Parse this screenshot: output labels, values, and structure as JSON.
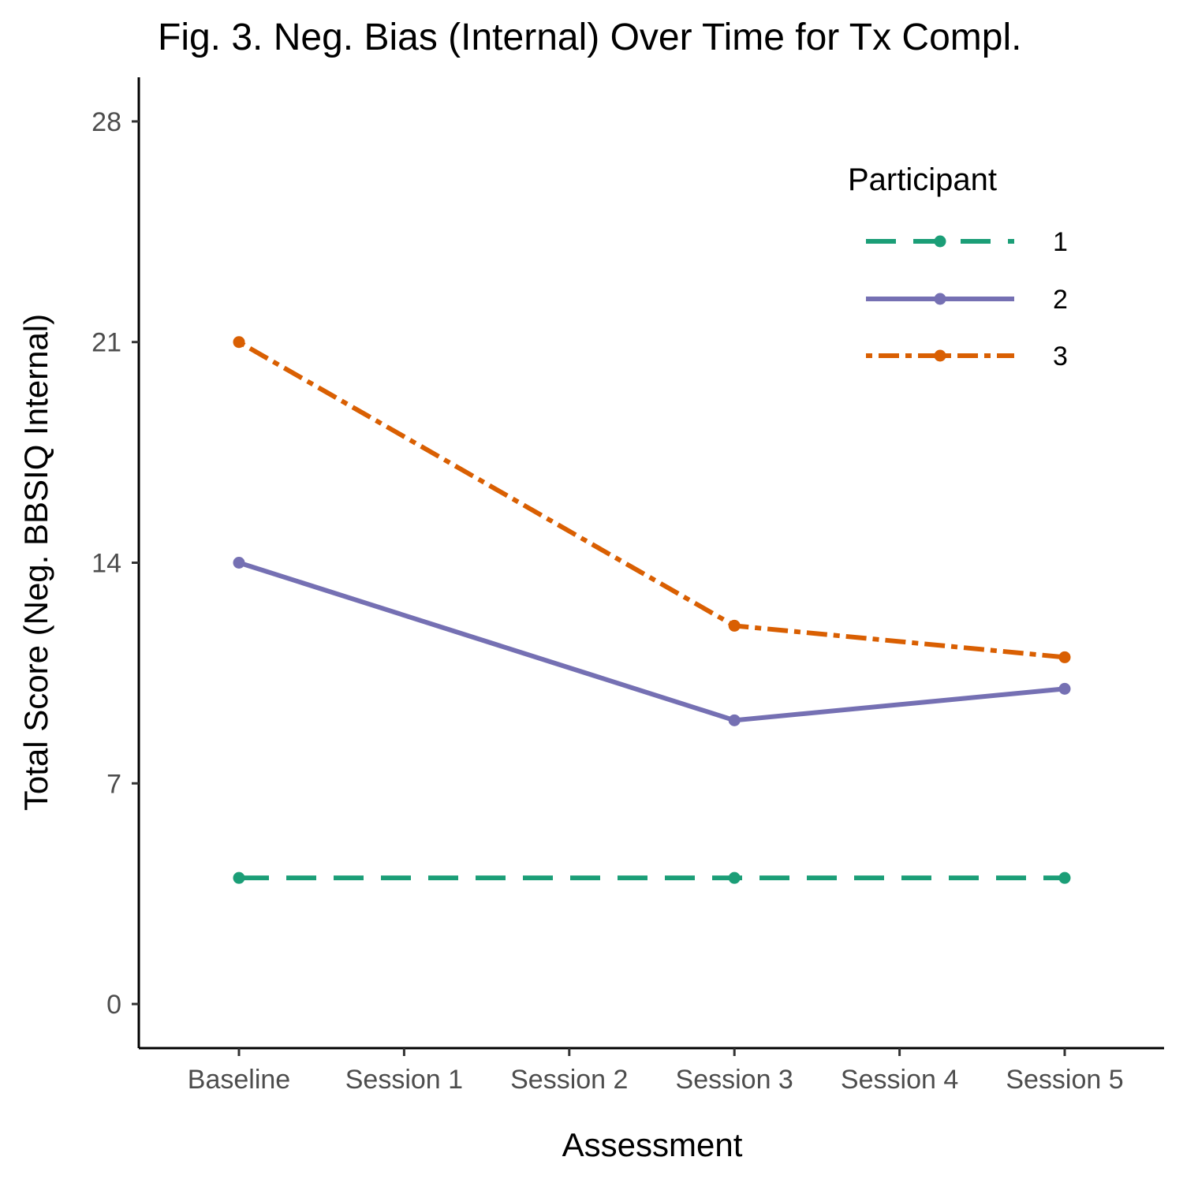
{
  "chart_data": {
    "type": "line",
    "title": "Fig. 3. Neg. Bias (Internal) Over Time for Tx Compl.",
    "xlabel": "Assessment",
    "ylabel": "Total Score (Neg. BBSIQ Internal)",
    "categories": [
      "Baseline",
      "Session 1",
      "Session 2",
      "Session 3",
      "Session 4",
      "Session 5"
    ],
    "yticks": [
      0,
      7,
      14,
      21,
      28
    ],
    "ylim": [
      -1.4,
      29.4
    ],
    "grid": false,
    "legend": {
      "title": "Participant",
      "placement": "top-right"
    },
    "series": [
      {
        "name": "1",
        "color": "#1b9e77",
        "dash": "longdash",
        "points": [
          {
            "x": "Baseline",
            "y": 4
          },
          {
            "x": "Session 3",
            "y": 4
          },
          {
            "x": "Session 5",
            "y": 4
          }
        ]
      },
      {
        "name": "2",
        "color": "#7570b3",
        "dash": "solid",
        "points": [
          {
            "x": "Baseline",
            "y": 14
          },
          {
            "x": "Session 3",
            "y": 9
          },
          {
            "x": "Session 5",
            "y": 10
          }
        ]
      },
      {
        "name": "3",
        "color": "#d95f02",
        "dash": "dotdash",
        "points": [
          {
            "x": "Baseline",
            "y": 21
          },
          {
            "x": "Session 3",
            "y": 12
          },
          {
            "x": "Session 5",
            "y": 11
          }
        ]
      }
    ]
  }
}
